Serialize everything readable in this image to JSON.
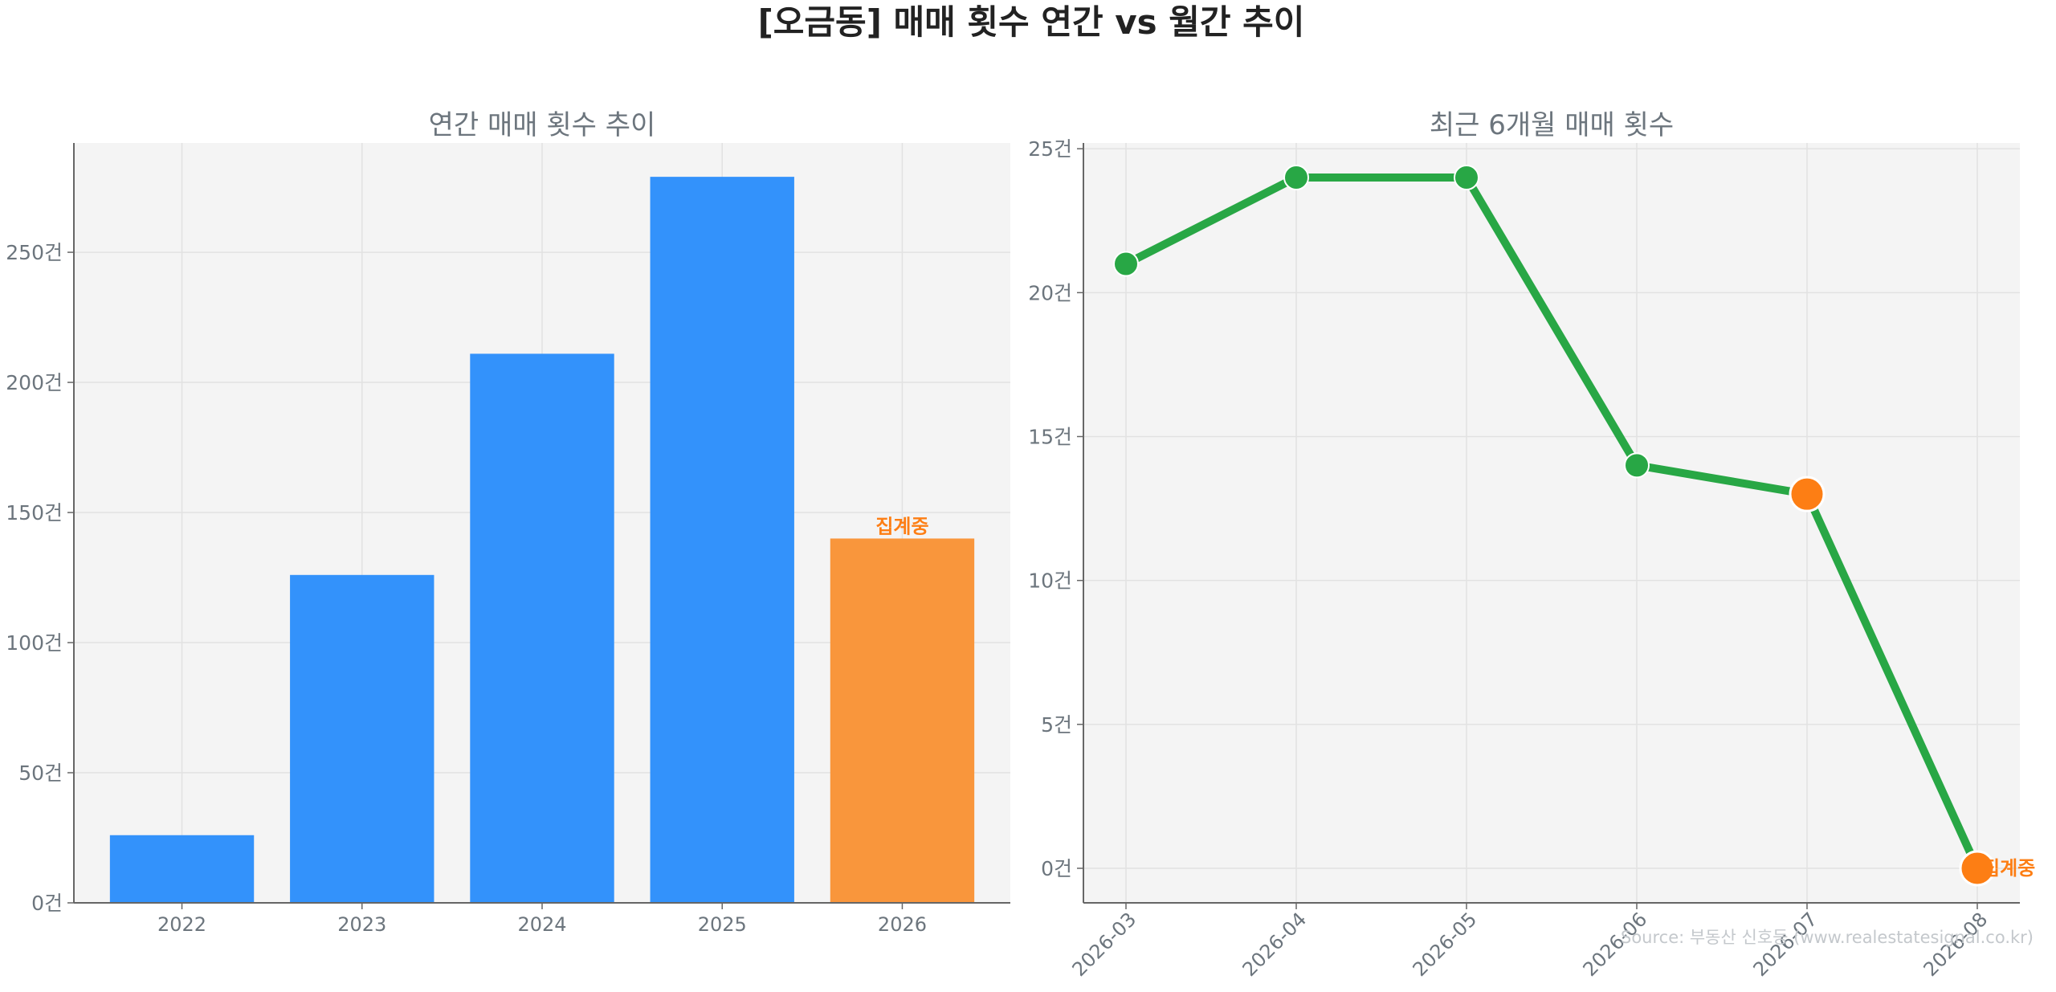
{
  "figure": {
    "title": "[오금동] 매매 횟수 연간 vs 월간 추이",
    "source": "Source: 부동산 신호등 (www.realestatesignal.co.kr)",
    "colors": {
      "bar": "#3392fb",
      "highlight": "#f9963c",
      "line": "#28a745",
      "highlight_dot": "#fd7e14",
      "plot_bg": "#f4f4f4",
      "text": "#6c757d"
    }
  },
  "chart_data": [
    {
      "type": "bar",
      "title": "연간 매매 횟수 추이",
      "categories": [
        "2022",
        "2023",
        "2024",
        "2025",
        "2026"
      ],
      "values": [
        26,
        126,
        211,
        279,
        140
      ],
      "highlight_index": 4,
      "highlight_label": "집계중",
      "ylim": [
        0,
        292
      ],
      "yticks": [
        0,
        50,
        100,
        150,
        200,
        250
      ],
      "ytick_labels": [
        "0건",
        "50건",
        "100건",
        "150건",
        "200건",
        "250건"
      ],
      "grid": true
    },
    {
      "type": "line",
      "title": "최근 6개월 매매 횟수",
      "categories": [
        "2026-03",
        "2026-04",
        "2026-05",
        "2026-06",
        "2026-07",
        "2026-08"
      ],
      "values": [
        21,
        24,
        24,
        14,
        13,
        0
      ],
      "highlight_indices": [
        4,
        5
      ],
      "highlight_label": "집계중",
      "highlight_label_index": 5,
      "ylim": [
        -1.2,
        25.2
      ],
      "yticks": [
        0,
        5,
        10,
        15,
        20,
        25
      ],
      "ytick_labels": [
        "0건",
        "5건",
        "10건",
        "15건",
        "20건",
        "25건"
      ],
      "grid": true
    }
  ]
}
